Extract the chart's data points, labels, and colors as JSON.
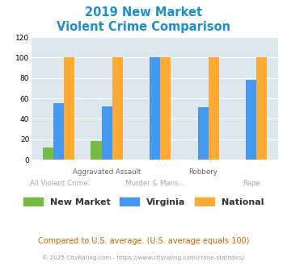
{
  "title_line1": "2019 New Market",
  "title_line2": "Violent Crime Comparison",
  "x_labels_row1": [
    "",
    "Aggravated Assault",
    "",
    "Robbery",
    ""
  ],
  "x_labels_row2": [
    "All Violent Crime",
    "",
    "Murder & Mans...",
    "",
    "Rape"
  ],
  "new_market": [
    12,
    18,
    0,
    0,
    0
  ],
  "virginia": [
    55,
    52,
    100,
    51,
    78
  ],
  "national": [
    100,
    100,
    100,
    100,
    100
  ],
  "colors": {
    "new_market": "#77bb44",
    "virginia": "#4499ee",
    "national": "#ffaa33"
  },
  "ylim": [
    0,
    120
  ],
  "yticks": [
    0,
    20,
    40,
    60,
    80,
    100,
    120
  ],
  "title_color": "#1a8fcc",
  "bg_color": "#dde8ee",
  "legend_labels": [
    "New Market",
    "Virginia",
    "National"
  ],
  "footer_text": "Compared to U.S. average. (U.S. average equals 100)",
  "copyright_text": "© 2025 CityRating.com - https://www.cityrating.com/crime-statistics/",
  "footer_color": "#cc6600",
  "copyright_color": "#999999"
}
